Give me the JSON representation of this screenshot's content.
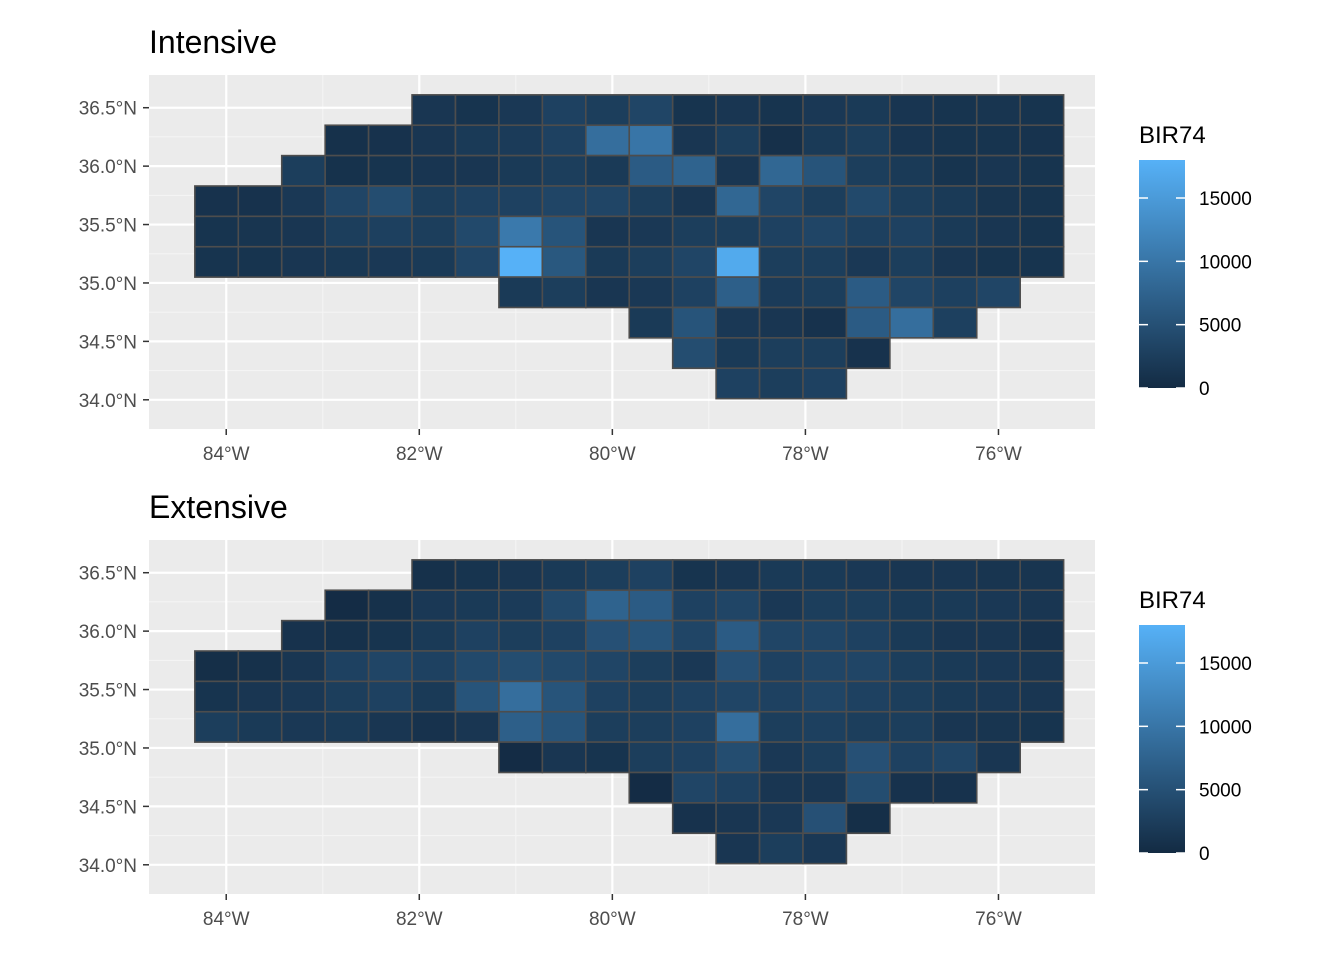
{
  "chart_data": [
    {
      "type": "heatmap",
      "title": "Intensive",
      "legend_title": "BIR74",
      "legend_position": "right",
      "legend_breaks": [
        "0",
        "5000",
        "10000",
        "15000"
      ],
      "color_low": "#132b43",
      "color_high": "#56b1f7",
      "value_range": [
        0,
        18000
      ],
      "grid": true,
      "x_ticks": [
        "84°W",
        "82°W",
        "80°W",
        "78°W",
        "76°W"
      ],
      "y_ticks": [
        "36.5°N",
        "36.0°N",
        "35.5°N",
        "35.0°N",
        "34.5°N",
        "34.0°N"
      ],
      "xlim": [
        -84.8,
        -75.0
      ],
      "ylim": [
        33.75,
        36.78
      ],
      "columns_lon": [
        -84.1,
        -83.65,
        -83.2,
        -82.75,
        -82.3,
        -81.85,
        -81.4,
        -80.95,
        -80.5,
        -80.05,
        -79.6,
        -79.15,
        -78.7,
        -78.25,
        -77.8,
        -77.35,
        -76.9,
        -76.45,
        -76.0,
        -75.55
      ],
      "rows_lat": [
        36.48,
        36.22,
        35.96,
        35.7,
        35.44,
        35.18,
        34.92,
        34.66,
        34.4,
        34.14
      ],
      "row_start_column": [
        5,
        3,
        2,
        0,
        0,
        0,
        7,
        10,
        11,
        12
      ],
      "values": [
        [
          1500,
          1200,
          1800,
          3000,
          2500,
          3500,
          1200,
          1500,
          1200,
          1800,
          2000,
          1400,
          1200,
          1300,
          1200
        ],
        [
          800,
          1000,
          1500,
          2000,
          2200,
          3000,
          9000,
          10000,
          1500,
          2500,
          700,
          2000,
          2500,
          1400,
          1200,
          1200,
          1100
        ],
        [
          2500,
          900,
          1200,
          1400,
          1500,
          2000,
          2500,
          2000,
          6500,
          7500,
          1500,
          8000,
          5500,
          2500,
          2000,
          1200,
          1500,
          1200
        ],
        [
          1000,
          1000,
          1800,
          3500,
          4500,
          2500,
          3000,
          3000,
          3500,
          3500,
          2500,
          1500,
          8000,
          3500,
          2500,
          4000,
          2500,
          2000,
          1300,
          1200
        ],
        [
          1200,
          1300,
          1500,
          2500,
          2800,
          2500,
          4000,
          10500,
          5500,
          1500,
          1800,
          2500,
          2500,
          3000,
          3500,
          2800,
          3000,
          2000,
          1500,
          1200
        ],
        [
          1200,
          1200,
          1500,
          1700,
          1800,
          2000,
          3500,
          18000,
          6000,
          2000,
          2500,
          3500,
          17000,
          2500,
          2500,
          1800,
          2500,
          1500,
          1200,
          1200
        ],
        [
          2000,
          2500,
          1500,
          1800,
          3000,
          7000,
          2200,
          2500,
          6500,
          3500,
          2800,
          3500
        ],
        [
          2000,
          5500,
          1800,
          1500,
          1000,
          6500,
          9000,
          2800
        ],
        [
          4500,
          2000,
          2500,
          2500,
          1000
        ],
        [
          3000,
          2500,
          3000
        ]
      ]
    },
    {
      "type": "heatmap",
      "title": "Extensive",
      "legend_title": "BIR74",
      "legend_position": "right",
      "legend_breaks": [
        "0",
        "5000",
        "10000",
        "15000"
      ],
      "color_low": "#132b43",
      "color_high": "#56b1f7",
      "value_range": [
        0,
        18000
      ],
      "grid": true,
      "x_ticks": [
        "84°W",
        "82°W",
        "80°W",
        "78°W",
        "76°W"
      ],
      "y_ticks": [
        "36.5°N",
        "36.0°N",
        "35.5°N",
        "35.0°N",
        "34.5°N",
        "34.0°N"
      ],
      "xlim": [
        -84.8,
        -75.0
      ],
      "ylim": [
        33.75,
        36.78
      ],
      "columns_lon": [
        -84.1,
        -83.65,
        -83.2,
        -82.75,
        -82.3,
        -81.85,
        -81.4,
        -80.95,
        -80.5,
        -80.05,
        -79.6,
        -79.15,
        -78.7,
        -78.25,
        -77.8,
        -77.35,
        -76.9,
        -76.45,
        -76.0,
        -75.55
      ],
      "rows_lat": [
        36.48,
        36.22,
        35.96,
        35.7,
        35.44,
        35.18,
        34.92,
        34.66,
        34.4,
        34.14
      ],
      "row_start_column": [
        5,
        3,
        2,
        0,
        0,
        0,
        7,
        10,
        11,
        12
      ],
      "values": [
        [
          800,
          1200,
          1500,
          2000,
          2500,
          3000,
          1200,
          1500,
          2000,
          2000,
          1800,
          1500,
          1500,
          1300,
          1300
        ],
        [
          200,
          800,
          1800,
          2000,
          2200,
          4000,
          7500,
          6500,
          3000,
          3500,
          1800,
          2500,
          2500,
          2000,
          2000,
          1800,
          1500
        ],
        [
          1000,
          800,
          1200,
          2000,
          3000,
          2500,
          3000,
          5000,
          5500,
          3500,
          6500,
          3500,
          3500,
          3000,
          2000,
          1500,
          1500,
          1000
        ],
        [
          500,
          800,
          1500,
          3000,
          3500,
          3000,
          4000,
          4500,
          4000,
          3500,
          2500,
          1800,
          5000,
          3000,
          3500,
          3500,
          2500,
          2000,
          1800,
          1500
        ],
        [
          1200,
          1500,
          1800,
          2500,
          3000,
          2000,
          5500,
          9000,
          5500,
          3000,
          2500,
          3000,
          3500,
          3000,
          3500,
          3000,
          2500,
          2000,
          1800,
          1500
        ],
        [
          2500,
          2000,
          1800,
          2000,
          1500,
          1000,
          1500,
          7000,
          5500,
          2500,
          2500,
          3000,
          9000,
          2500,
          2800,
          2500,
          2500,
          1500,
          1300,
          1200
        ],
        [
          200,
          1500,
          1200,
          2500,
          3000,
          4500,
          1800,
          2500,
          5000,
          3000,
          3500,
          1500
        ],
        [
          200,
          3500,
          3000,
          1500,
          1500,
          4500,
          1000,
          1000
        ],
        [
          1000,
          1500,
          1800,
          5000,
          500
        ],
        [
          1500,
          2500,
          1800
        ]
      ]
    }
  ]
}
